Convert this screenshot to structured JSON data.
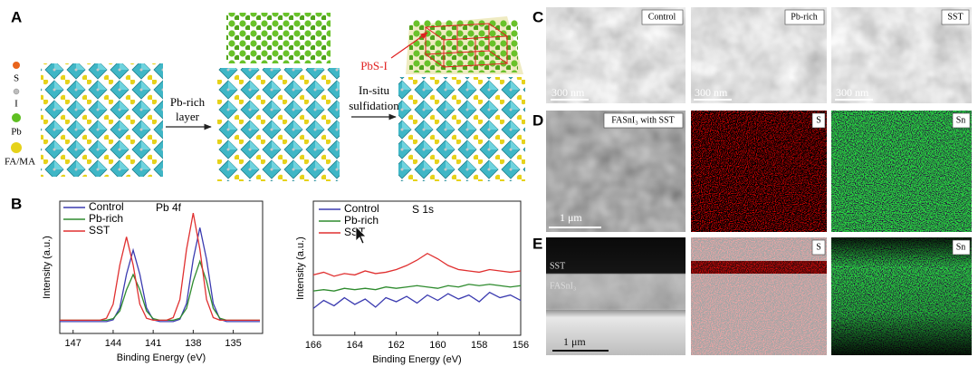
{
  "panel_labels": [
    "A",
    "B",
    "C",
    "D",
    "E"
  ],
  "panel_a": {
    "legend": [
      "S",
      "I",
      "Pb",
      "FA/MA"
    ],
    "arrow1": [
      "Pb-rich",
      "layer"
    ],
    "arrow2": [
      "In-situ",
      "sulfidation"
    ],
    "callout": "PbS-I"
  },
  "chart_data": [
    {
      "type": "line",
      "annotation": "Pb 4f",
      "x_label": "Binding Energy (eV)",
      "y_label": "Intensity (a.u.)",
      "x": [
        148,
        147.5,
        147,
        146.5,
        146,
        145.5,
        145,
        144.5,
        144,
        143.5,
        143,
        142.5,
        142,
        141.5,
        141,
        140.5,
        140,
        139.5,
        139,
        138.5,
        138,
        137.5,
        137,
        136.5,
        136,
        135.5,
        135,
        134.5,
        134,
        133.5,
        133
      ],
      "series": [
        {
          "name": "Control",
          "color": "#3b3bb0",
          "values": [
            9,
            9,
            9,
            9,
            9,
            9,
            9,
            9,
            10.3,
            19.4,
            44.7,
            63,
            44.7,
            19.4,
            10.3,
            9,
            9,
            9,
            10.7,
            22.6,
            56,
            80,
            56,
            22.6,
            10.7,
            9,
            9,
            9,
            9,
            9,
            9
          ]
        },
        {
          "name": "Pb-rich",
          "color": "#2e8b2e",
          "values": [
            10,
            10,
            10,
            10,
            10,
            10,
            10,
            10,
            11.2,
            17,
            33,
            44.5,
            33,
            17,
            11.2,
            10,
            10,
            10,
            11.5,
            19,
            39.5,
            54.5,
            39.5,
            19,
            11.5,
            10,
            10,
            10,
            10,
            10,
            10
          ]
        },
        {
          "name": "SST",
          "color": "#e03030",
          "values": [
            10,
            10,
            10,
            10,
            10,
            10,
            10,
            11.5,
            22.1,
            51.7,
            73,
            51.7,
            22.1,
            11.5,
            10,
            10,
            10,
            12,
            25.6,
            63.6,
            91,
            63.6,
            25.6,
            12,
            10,
            10,
            10,
            10,
            10,
            10,
            10
          ]
        }
      ],
      "xlim": [
        148,
        132.8
      ],
      "ylim": [
        0,
        100
      ],
      "xticks": [
        147,
        144,
        141,
        138,
        135
      ]
    },
    {
      "type": "line",
      "annotation": "S 1s",
      "x_label": "Binding Energy (eV)",
      "y_label": "Intensity (a.u.)",
      "x": [
        166,
        165.5,
        165,
        164.5,
        164,
        163.5,
        163,
        162.5,
        162,
        161.5,
        161,
        160.5,
        160,
        159.5,
        159,
        158.5,
        158,
        157.5,
        157,
        156.5,
        156
      ],
      "series": [
        {
          "name": "Control",
          "color": "#3b3bb0",
          "values": [
            20,
            26,
            22,
            28,
            23,
            27,
            21,
            28,
            25,
            29,
            24,
            30,
            26,
            31,
            27,
            30,
            25,
            32,
            28,
            30,
            26
          ]
        },
        {
          "name": "Pb-rich",
          "color": "#2e8b2e",
          "values": [
            33,
            34,
            33,
            35,
            34,
            35,
            34,
            36,
            35,
            36,
            37,
            36,
            35,
            37,
            36,
            38,
            37,
            38,
            37,
            36,
            37
          ]
        },
        {
          "name": "SST",
          "color": "#e03030",
          "values": [
            45,
            47,
            44,
            46,
            45,
            48,
            46,
            47,
            49,
            52,
            56,
            61,
            57,
            52,
            49,
            48,
            47,
            49,
            48,
            47,
            48
          ]
        }
      ],
      "xlim": [
        166,
        156
      ],
      "ylim": [
        0,
        100
      ],
      "xticks": [
        166,
        164,
        162,
        160,
        158,
        156
      ]
    }
  ],
  "panel_c": {
    "labels": [
      "Control",
      "Pb-rich",
      "SST"
    ],
    "scale_bars": [
      "300 nm",
      "300 nm",
      "300 nm"
    ]
  },
  "panel_d": {
    "labels": [
      "FASnI₃ with SST",
      "S",
      "Sn"
    ],
    "scale_bar": "1 μm"
  },
  "panel_e": {
    "layer_labels": [
      "SST",
      "FASnI₃"
    ],
    "labels": [
      "S",
      "Sn"
    ],
    "scale_bar": "1 μm"
  }
}
